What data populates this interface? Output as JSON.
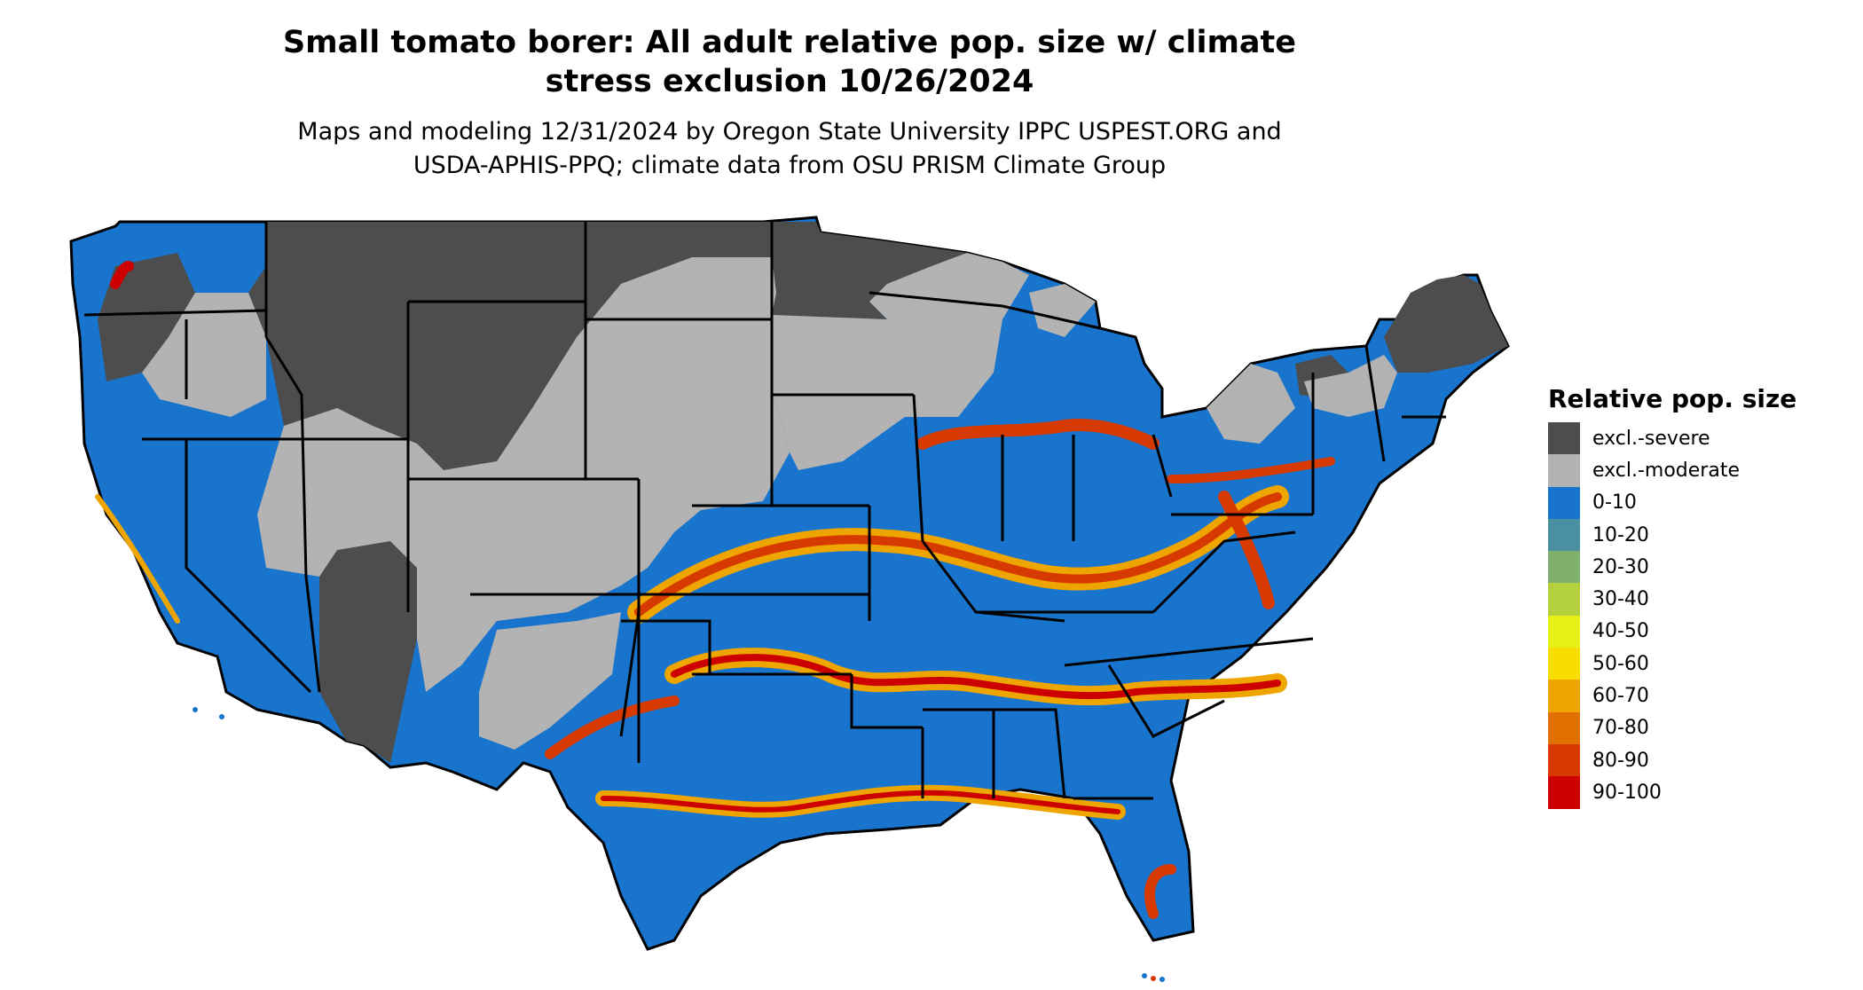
{
  "title_line1": "Small tomato borer: All adult relative pop. size w/ climate",
  "title_line2": "stress exclusion 10/26/2024",
  "subtitle_line1": "Maps and modeling 12/31/2024 by Oregon State University IPPC USPEST.ORG and",
  "subtitle_line2": "USDA-APHIS-PPQ; climate data from OSU PRISM Climate Group",
  "legend": {
    "title": "Relative pop. size",
    "items": [
      {
        "label": "excl.-severe",
        "color": "#4d4d4d"
      },
      {
        "label": "excl.-moderate",
        "color": "#b3b3b3"
      },
      {
        "label": "0-10",
        "color": "#1874cd"
      },
      {
        "label": "10-20",
        "color": "#4a90a0"
      },
      {
        "label": "20-30",
        "color": "#7fb06d"
      },
      {
        "label": "30-40",
        "color": "#b4d03d"
      },
      {
        "label": "40-50",
        "color": "#e6ef16"
      },
      {
        "label": "50-60",
        "color": "#f8dd00"
      },
      {
        "label": "60-70",
        "color": "#eea500"
      },
      {
        "label": "70-80",
        "color": "#e07000"
      },
      {
        "label": "80-90",
        "color": "#d63a00"
      },
      {
        "label": "90-100",
        "color": "#cc0000"
      }
    ]
  }
}
